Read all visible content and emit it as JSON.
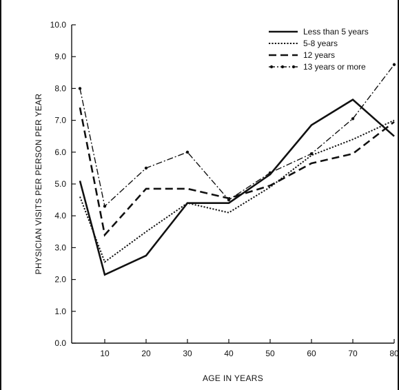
{
  "chart_data": {
    "type": "line",
    "title": "",
    "xlabel": "AGE IN YEARS",
    "ylabel": "PHYSICIAN VISITS PER PERSON PER YEAR",
    "xlim": [
      2,
      80
    ],
    "ylim": [
      0,
      10
    ],
    "xticks": [
      10,
      20,
      30,
      40,
      50,
      60,
      70,
      80
    ],
    "yticks": [
      0,
      1,
      2,
      3,
      4,
      5,
      6,
      7,
      8,
      9,
      10
    ],
    "ytick_labels": [
      "0.0",
      "1.0",
      "2.0",
      "3.0",
      "4.0",
      "5.0",
      "6.0",
      "7.0",
      "8.0",
      "9.0",
      "10.0"
    ],
    "grid": false,
    "legend_position": "top-right",
    "series": [
      {
        "name": "Less than 5 years",
        "style": "solid",
        "x": [
          4,
          10,
          20,
          30,
          40,
          50,
          60,
          70,
          80
        ],
        "y": [
          5.1,
          2.15,
          2.75,
          4.4,
          4.4,
          5.3,
          6.85,
          7.65,
          6.5
        ]
      },
      {
        "name": "5-8 years",
        "style": "dotted",
        "x": [
          4,
          10,
          20,
          30,
          40,
          50,
          60,
          70,
          80
        ],
        "y": [
          4.6,
          2.55,
          3.5,
          4.4,
          4.1,
          4.9,
          5.9,
          6.4,
          7.0
        ]
      },
      {
        "name": "12 years",
        "style": "dashed",
        "x": [
          4,
          10,
          20,
          30,
          40,
          50,
          60,
          70,
          80
        ],
        "y": [
          7.4,
          3.4,
          4.85,
          4.85,
          4.55,
          4.95,
          5.65,
          5.95,
          6.95
        ]
      },
      {
        "name": "13 years or more",
        "style": "dash-dot",
        "x": [
          4,
          10,
          20,
          30,
          40,
          50,
          60,
          70,
          80
        ],
        "y": [
          8.0,
          4.3,
          5.5,
          6.0,
          4.5,
          5.35,
          5.95,
          7.05,
          8.75
        ]
      }
    ]
  }
}
